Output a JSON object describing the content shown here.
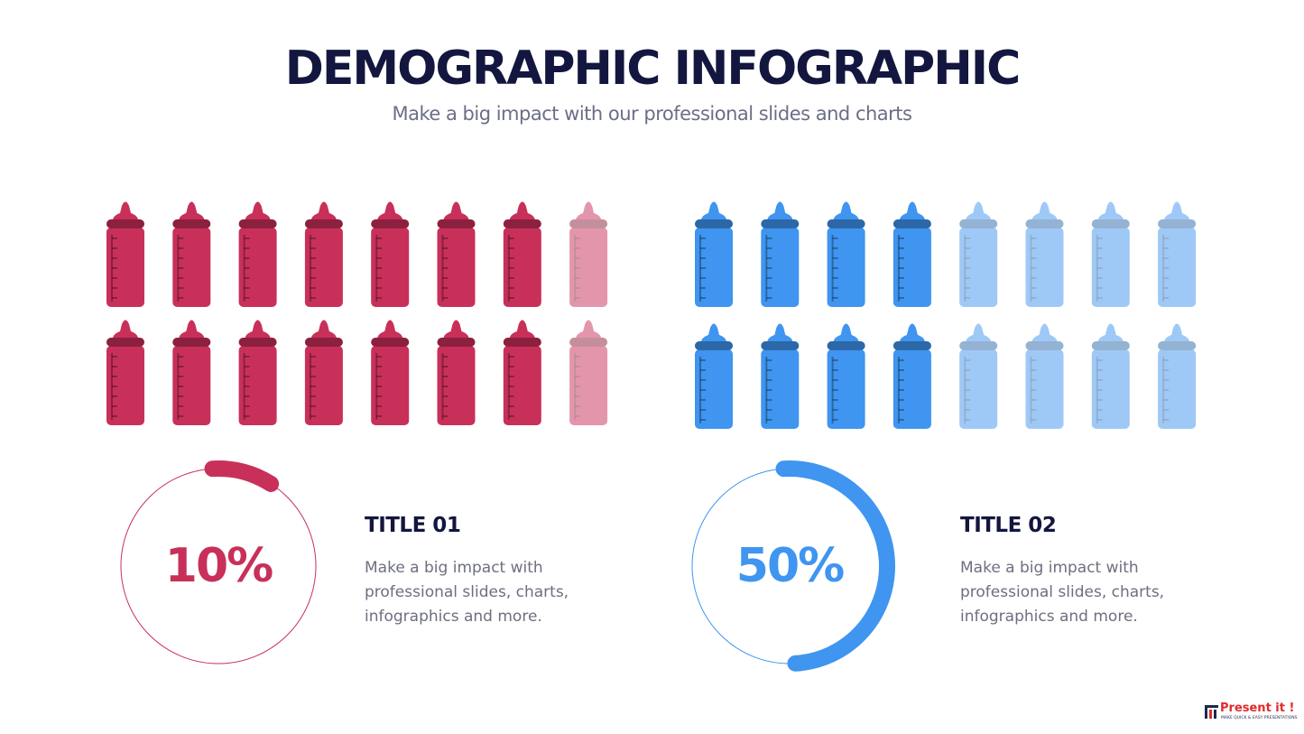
{
  "header": {
    "title": "DEMOGRAPHIC INFOGRAPHIC",
    "subtitle": "Make a big impact with our professional slides and charts"
  },
  "chart_data": [
    {
      "type": "gauge",
      "title": "TITLE 01",
      "values": [
        10
      ],
      "value_labels": [
        "10%"
      ],
      "color": "#c8305a",
      "description": "Make a big impact with professional slides, charts, infographics and more."
    },
    {
      "type": "gauge",
      "title": "TITLE 02",
      "values": [
        50
      ],
      "value_labels": [
        "50%"
      ],
      "color": "#3f95f0",
      "description": "Make a big impact with professional slides, charts, infographics and more."
    }
  ],
  "logo": {
    "name": "Present it !",
    "tagline": "MAKE QUICK & EASY PRESENTATIONS"
  }
}
